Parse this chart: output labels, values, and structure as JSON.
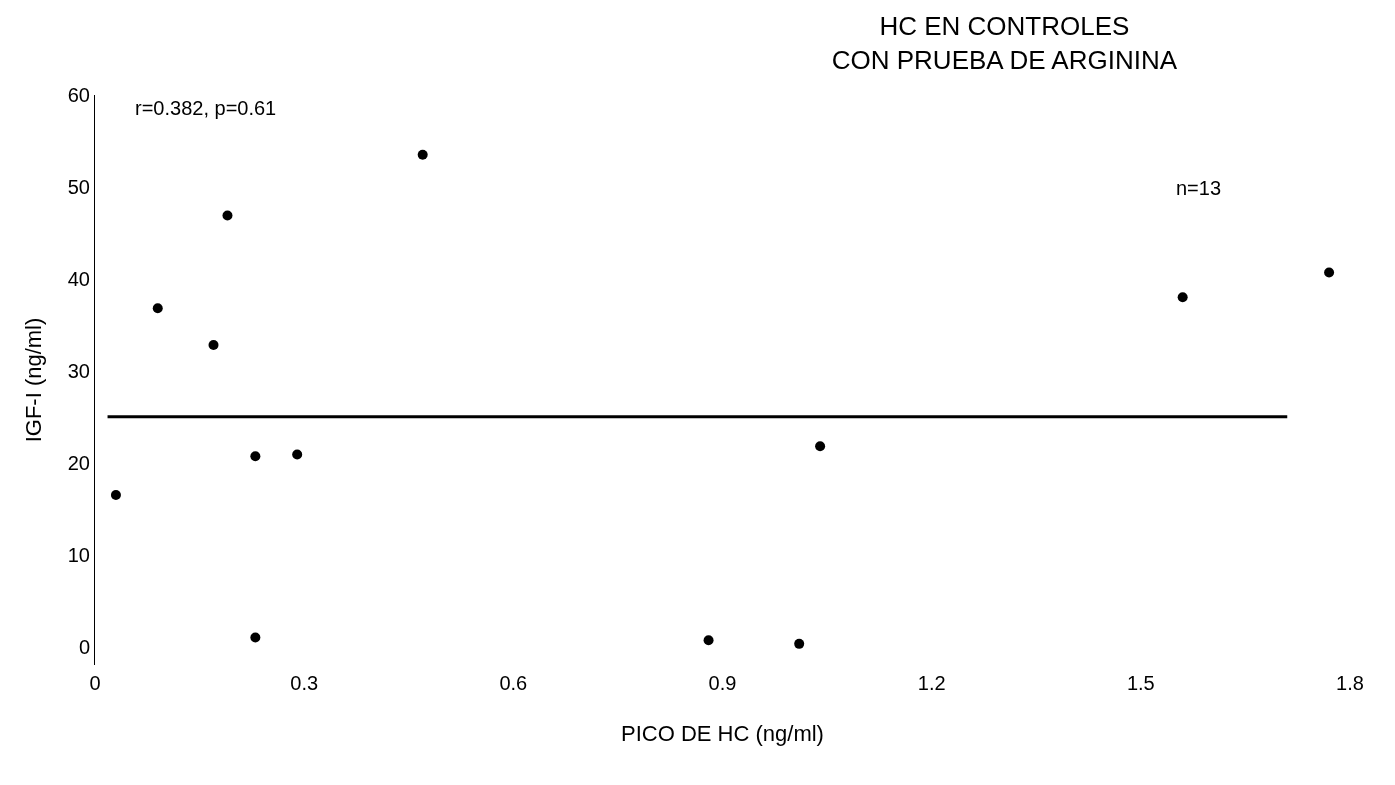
{
  "chart_data": {
    "type": "scatter",
    "title": "HC EN CONTROLES\nCON PRUEBA DE ARGININA",
    "xlabel": "PICO DE HC (ng/ml)",
    "ylabel": "IGF-I (ng/ml)",
    "x": [
      0.03,
      0.09,
      0.17,
      0.19,
      0.23,
      0.29,
      0.23,
      0.47,
      0.88,
      1.01,
      1.04,
      1.56,
      1.77
    ],
    "series": [
      {
        "color": "#000000",
        "values": [
          16.5,
          36.8,
          32.8,
          46.9,
          20.7,
          20.9,
          1,
          53.5,
          0.7,
          0.3,
          21.8,
          38,
          40.7
        ]
      }
    ],
    "xlim": [
      0,
      1.8
    ],
    "xticks": [
      0,
      0.3,
      0.6,
      0.9,
      1.2,
      1.5,
      1.8
    ],
    "ylim": [
      -2,
      60
    ],
    "yticks": [
      0,
      10,
      20,
      30,
      40,
      50,
      60
    ],
    "ref_lines": [
      {
        "axis": "y",
        "value": 25,
        "color": "#000000",
        "line_style": "solid"
      }
    ],
    "annotations": [
      "r=0.382, p=0.61",
      "n=13"
    ],
    "grid": false,
    "marker": "circle"
  }
}
